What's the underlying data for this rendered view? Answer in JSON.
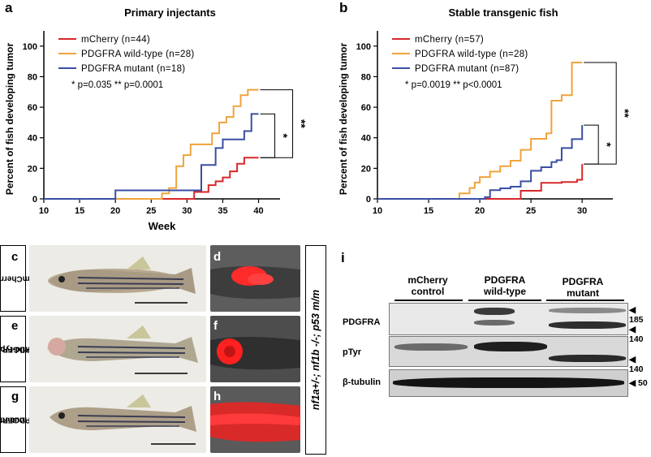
{
  "panels": {
    "a": "a",
    "b": "b",
    "c": "c",
    "d": "d",
    "e": "e",
    "f": "f",
    "g": "g",
    "h": "h",
    "i": "i"
  },
  "chart_data": [
    {
      "type": "line",
      "step": true,
      "title": "Primary injectants",
      "xlabel": "Week",
      "ylabel": "Percent of fish developing tumor",
      "xlim": [
        10,
        43
      ],
      "ylim": [
        0,
        110
      ],
      "xticks": [
        10,
        15,
        20,
        25,
        30,
        35,
        40
      ],
      "yticks": [
        0,
        20,
        40,
        60,
        80,
        100
      ],
      "legend_position": "top-left",
      "stats_text": "* p=0.035   ** p=0.0001",
      "significance": [
        {
          "label": "*",
          "between": [
            "PDGFRA mutant (n=18)",
            "mCherry (n=44)"
          ]
        },
        {
          "label": "**",
          "between": [
            "PDGFRA wild-type (n=28)",
            "mCherry (n=44)"
          ]
        }
      ],
      "series": [
        {
          "name": "mCherry (n=44)",
          "color": "#d7282b",
          "x": [
            10,
            30,
            31,
            33,
            34,
            35,
            36,
            37,
            38,
            40
          ],
          "y": [
            0,
            0,
            4.5,
            9,
            11.5,
            14,
            18,
            23,
            27,
            27
          ]
        },
        {
          "name": "PDGFRA wild-type (n=28)",
          "color": "#f0a33c",
          "x": [
            10,
            26,
            26.5,
            27.5,
            28.5,
            29.5,
            30.5,
            32,
            33.5,
            34.5,
            35.5,
            36.5,
            37.5,
            38.5,
            40
          ],
          "y": [
            0,
            0,
            3.6,
            7.1,
            21.4,
            28.6,
            35.7,
            35.7,
            42.9,
            50,
            53.6,
            60.7,
            67.9,
            71.4,
            71.4
          ]
        },
        {
          "name": "PDGFRA mutant (n=18)",
          "color": "#3a4ea3",
          "x": [
            10,
            20,
            30,
            32,
            34,
            35,
            37,
            38,
            39,
            40
          ],
          "y": [
            0,
            5.6,
            5.6,
            22.2,
            33.3,
            38.9,
            38.9,
            44.4,
            55.6,
            55.6
          ]
        }
      ]
    },
    {
      "type": "line",
      "step": true,
      "title": "Stable transgenic fish",
      "xlabel": "",
      "ylabel": "Percent of fish developing tumor",
      "xlim": [
        10,
        33
      ],
      "ylim": [
        0,
        110
      ],
      "xticks": [
        10,
        15,
        20,
        25,
        30
      ],
      "yticks": [
        0,
        20,
        40,
        60,
        80,
        100
      ],
      "legend_position": "top-left",
      "stats_text": "* p=0.0019   ** p<0.0001",
      "significance": [
        {
          "label": "*",
          "between": [
            "PDGFRA mutant (n=87)",
            "mCherry (n=57)"
          ]
        },
        {
          "label": "**",
          "between": [
            "PDGFRA wild-type (n=28)",
            "mCherry (n=57)"
          ]
        }
      ],
      "series": [
        {
          "name": "mCherry (n=57)",
          "color": "#d7282b",
          "x": [
            10,
            24,
            26,
            28,
            29.5,
            30
          ],
          "y": [
            0,
            5.3,
            10.5,
            11,
            12.5,
            22.8
          ]
        },
        {
          "name": "PDGFRA wild-type (n=28)",
          "color": "#f0a33c",
          "x": [
            10,
            18,
            19,
            19.5,
            20,
            21,
            22,
            23,
            24,
            25,
            26.5,
            27,
            27.5,
            28,
            29,
            30
          ],
          "y": [
            0,
            3.6,
            7.1,
            10.7,
            14.3,
            17.9,
            21.4,
            25,
            32.1,
            39.3,
            42.9,
            64.3,
            64.3,
            67.9,
            89.3,
            89.3
          ]
        },
        {
          "name": "PDGFRA mutant (n=87)",
          "color": "#3a4ea3",
          "x": [
            10,
            20.5,
            21,
            22,
            23,
            24,
            25,
            26,
            27,
            27.5,
            28,
            29,
            30
          ],
          "y": [
            0,
            1.1,
            5.7,
            6.9,
            8,
            11.5,
            18.4,
            20.7,
            24.1,
            25.3,
            33.3,
            39.1,
            48.3
          ]
        }
      ]
    }
  ],
  "photos": {
    "row_labels": [
      {
        "line1": "mCherry",
        "line2": ""
      },
      {
        "line1": "PDGFRA",
        "line2": "wild-type"
      },
      {
        "line1": "PDGFRA",
        "line2": "mutant"
      }
    ],
    "genotype": "nf1a+/-; nf1b -/-; p53 m/m"
  },
  "blot": {
    "groups": [
      {
        "line1": "mCherry",
        "line2": "control"
      },
      {
        "line1": "PDGFRA",
        "line2": "wild-type"
      },
      {
        "line1": "PDGFRA",
        "line2": "mutant"
      }
    ],
    "rows": [
      {
        "label": "PDGFRA",
        "markers": [
          "185",
          "140"
        ]
      },
      {
        "label": "pTyr",
        "markers": [
          "140"
        ]
      },
      {
        "label": "β-tubulin",
        "markers": [
          "50"
        ]
      }
    ]
  }
}
